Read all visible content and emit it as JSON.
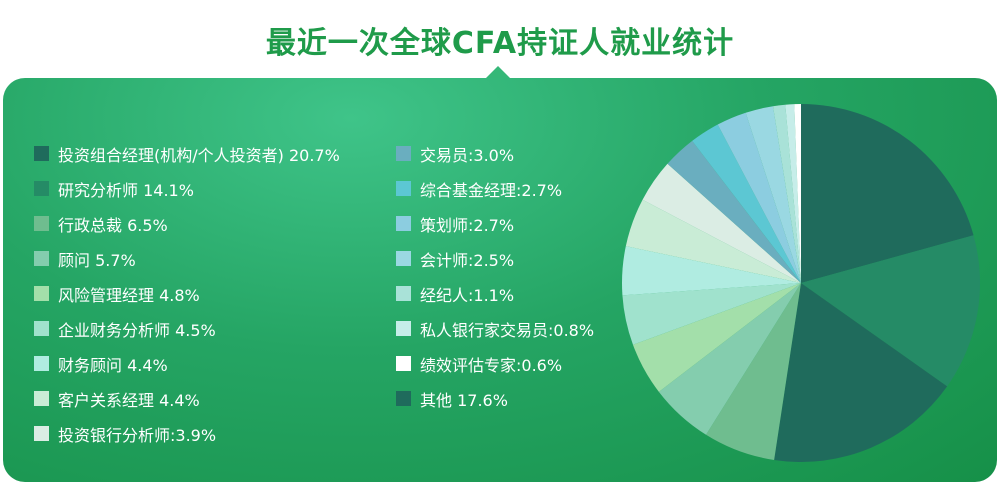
{
  "title": "最近一次全球CFA持证人就业统计",
  "chart_data": {
    "type": "pie",
    "title": "最近一次全球CFA持证人就业统计",
    "slices": [
      {
        "label": "投资组合经理(机构/个人投资者)",
        "value": 20.7,
        "legend_text": "投资组合经理(机构/个人投资者) 20.7%",
        "color": "#1f6b5c"
      },
      {
        "label": "研究分析师",
        "value": 14.1,
        "legend_text": "研究分析师 14.1%",
        "color": "#258b66"
      },
      {
        "label": "行政总裁",
        "value": 6.5,
        "legend_text": "行政总裁 6.5%",
        "color": "#6fbd8f"
      },
      {
        "label": "顾问",
        "value": 5.7,
        "legend_text": "顾问 5.7%",
        "color": "#84cdae"
      },
      {
        "label": "风险管理经理",
        "value": 4.8,
        "legend_text": "风险管理经理 4.8%",
        "color": "#a3dfaa"
      },
      {
        "label": "企业财务分析师",
        "value": 4.5,
        "legend_text": "企业财务分析师 4.5%",
        "color": "#a0e2cd"
      },
      {
        "label": "财务顾问",
        "value": 4.4,
        "legend_text": "财务顾问 4.4%",
        "color": "#b0ece1"
      },
      {
        "label": "客户关系经理",
        "value": 4.4,
        "legend_text": "客户关系经理 4.4%",
        "color": "#c9ecd6"
      },
      {
        "label": "投资银行分析师",
        "value": 3.9,
        "legend_text": "投资银行分析师:3.9%",
        "color": "#dbede4"
      },
      {
        "label": "交易员",
        "value": 3.0,
        "legend_text": "交易员:3.0%",
        "color": "#6aaebf"
      },
      {
        "label": "综合基金经理",
        "value": 2.7,
        "legend_text": "综合基金经理:2.7%",
        "color": "#5cc7d3"
      },
      {
        "label": "策划师",
        "value": 2.7,
        "legend_text": "策划师:2.7%",
        "color": "#8ccde0"
      },
      {
        "label": "会计师",
        "value": 2.5,
        "legend_text": "会计师:2.5%",
        "color": "#9ad8e2"
      },
      {
        "label": "经纪人",
        "value": 1.1,
        "legend_text": "经纪人:1.1%",
        "color": "#a9e2d8"
      },
      {
        "label": "私人银行家交易员",
        "value": 0.8,
        "legend_text": "私人银行家交易员:0.8%",
        "color": "#c6ede9"
      },
      {
        "label": "绩效评估专家",
        "value": 0.6,
        "legend_text": "绩效评估专家:0.6%",
        "color": "#ffffff"
      },
      {
        "label": "其他",
        "value": 17.6,
        "legend_text": "其他 17.6%",
        "color": "#1f6b5c"
      }
    ],
    "pie_order": [
      0,
      1,
      16,
      2,
      3,
      4,
      5,
      6,
      7,
      8,
      9,
      10,
      11,
      12,
      13,
      14,
      15
    ],
    "legend_columns": [
      [
        0,
        1,
        2,
        3,
        4,
        5,
        6,
        7,
        8
      ],
      [
        9,
        10,
        11,
        12,
        13,
        14,
        15,
        16
      ]
    ]
  }
}
